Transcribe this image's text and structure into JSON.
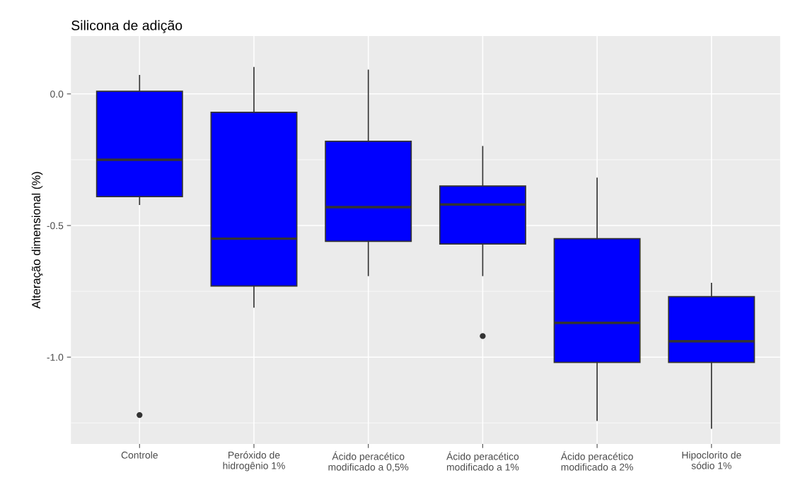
{
  "chart_data": {
    "type": "box",
    "title": "Silicona de adição",
    "ylabel": "Alteração dimensional (%)",
    "categories": [
      "Controle",
      "Peróxido de\nhidrogênio 1%",
      "Ácido peracético\nmodificado a 0,5%",
      "Ácido peracético\nmodificado a 1%",
      "Ácido peracético\nmodificado a 2%",
      "Hipoclorito de\nsódio 1%"
    ],
    "color": "#0000ff",
    "boxes": [
      {
        "low": -0.42,
        "q1": -0.39,
        "median": -0.25,
        "q3": 0.01,
        "high": 0.07,
        "outliers": [
          -1.22
        ]
      },
      {
        "low": -0.81,
        "q1": -0.73,
        "median": -0.55,
        "q3": -0.07,
        "high": 0.1
      },
      {
        "low": -0.69,
        "q1": -0.56,
        "median": -0.43,
        "q3": -0.18,
        "high": 0.09
      },
      {
        "low": -0.69,
        "q1": -0.57,
        "median": -0.42,
        "q3": -0.35,
        "high": -0.2,
        "outliers": [
          -0.92
        ]
      },
      {
        "low": -1.24,
        "q1": -1.02,
        "median": -0.87,
        "q3": -0.55,
        "high": -0.32
      },
      {
        "low": -1.27,
        "q1": -1.02,
        "median": -0.94,
        "q3": -0.77,
        "high": -0.72
      }
    ],
    "ylim": [
      -1.33,
      0.22
    ],
    "yticks": [
      {
        "value": 0.0,
        "label": "0.0"
      },
      {
        "value": -0.5,
        "label": "-0.5"
      },
      {
        "value": -1.0,
        "label": "-1.0"
      }
    ],
    "grid": true
  }
}
